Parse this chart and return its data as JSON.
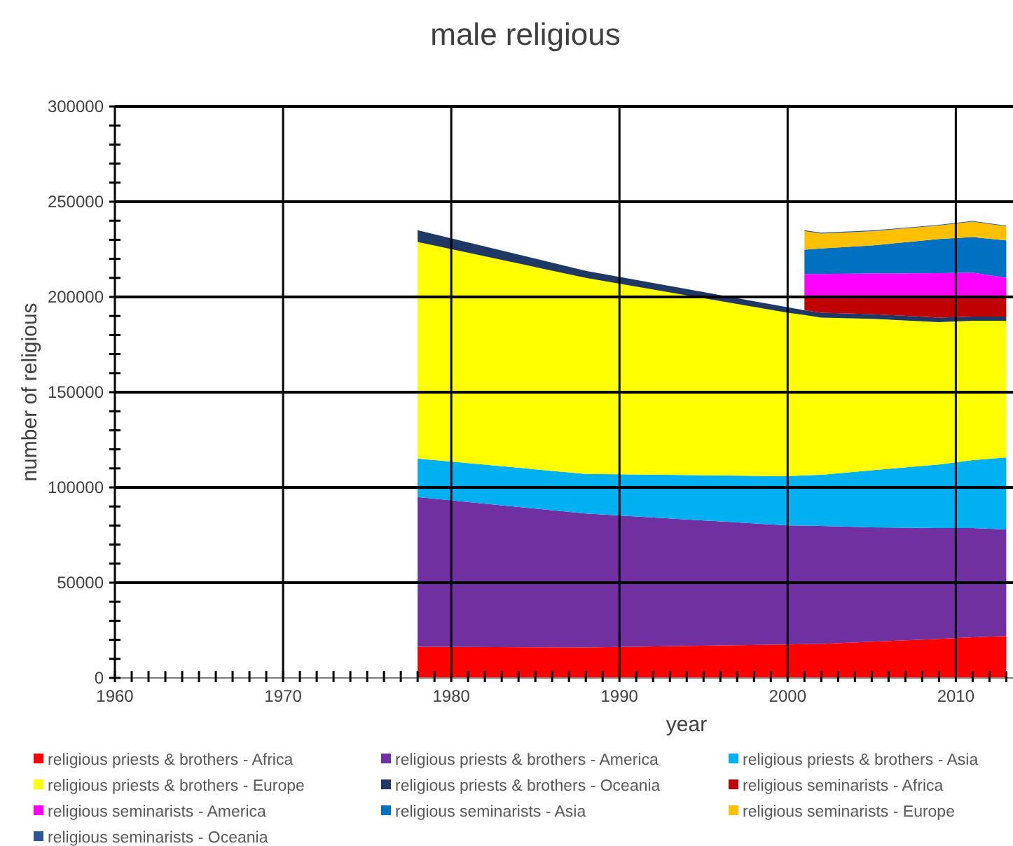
{
  "chart_data": {
    "type": "area",
    "stacked": true,
    "title": "male religious",
    "xlabel": "year",
    "ylabel": "number of religious",
    "x": [
      1978,
      1988,
      2000,
      2001,
      2002,
      2005,
      2009,
      2011,
      2013
    ],
    "xlim": [
      1960,
      2013.4
    ],
    "xticks": [
      1960,
      {
        "value": 1961,
        "label": null
      },
      {
        "value": 1962,
        "label": null
      },
      {
        "value": 1963,
        "label": null
      },
      {
        "value": 1964,
        "label": null
      },
      {
        "value": 1965,
        "label": null
      },
      {
        "value": 1966,
        "label": null
      },
      {
        "value": 1967,
        "label": null
      },
      {
        "value": 1968,
        "label": null
      },
      {
        "value": 1969,
        "label": null
      },
      1970,
      {
        "value": 1971,
        "label": null
      },
      {
        "value": 1972,
        "label": null
      },
      {
        "value": 1973,
        "label": null
      },
      {
        "value": 1974,
        "label": null
      },
      {
        "value": 1975,
        "label": null
      },
      {
        "value": 1976,
        "label": null
      },
      {
        "value": 1977,
        "label": null
      },
      {
        "value": 1978,
        "label": null
      },
      {
        "value": 1979,
        "label": null
      },
      1980,
      {
        "value": 1981,
        "label": null
      },
      {
        "value": 1982,
        "label": null
      },
      {
        "value": 1983,
        "label": null
      },
      {
        "value": 1984,
        "label": null
      },
      {
        "value": 1985,
        "label": null
      },
      {
        "value": 1986,
        "label": null
      },
      {
        "value": 1987,
        "label": null
      },
      {
        "value": 1988,
        "label": null
      },
      {
        "value": 1989,
        "label": null
      },
      1990,
      {
        "value": 1991,
        "label": null
      },
      {
        "value": 1992,
        "label": null
      },
      {
        "value": 1993,
        "label": null
      },
      {
        "value": 1994,
        "label": null
      },
      {
        "value": 1995,
        "label": null
      },
      {
        "value": 1996,
        "label": null
      },
      {
        "value": 1997,
        "label": null
      },
      {
        "value": 1998,
        "label": null
      },
      {
        "value": 1999,
        "label": null
      },
      2000,
      {
        "value": 2001,
        "label": null
      },
      {
        "value": 2002,
        "label": null
      },
      {
        "value": 2003,
        "label": null
      },
      {
        "value": 2004,
        "label": null
      },
      {
        "value": 2005,
        "label": null
      },
      {
        "value": 2006,
        "label": null
      },
      {
        "value": 2007,
        "label": null
      },
      {
        "value": 2008,
        "label": null
      },
      {
        "value": 2009,
        "label": null
      },
      2010,
      {
        "value": 2011,
        "label": null
      },
      {
        "value": 2012,
        "label": null
      },
      {
        "value": 2013,
        "label": null
      }
    ],
    "ylim": [
      0,
      300000
    ],
    "yticks": [
      0,
      {
        "value": 10000,
        "label": null
      },
      {
        "value": 20000,
        "label": null
      },
      {
        "value": 30000,
        "label": null
      },
      {
        "value": 40000,
        "label": null
      },
      50000,
      {
        "value": 60000,
        "label": null
      },
      {
        "value": 70000,
        "label": null
      },
      {
        "value": 80000,
        "label": null
      },
      {
        "value": 90000,
        "label": null
      },
      100000,
      {
        "value": 110000,
        "label": null
      },
      {
        "value": 120000,
        "label": null
      },
      {
        "value": 130000,
        "label": null
      },
      {
        "value": 140000,
        "label": null
      },
      150000,
      {
        "value": 160000,
        "label": null
      },
      {
        "value": 170000,
        "label": null
      },
      {
        "value": 180000,
        "label": null
      },
      {
        "value": 190000,
        "label": null
      },
      200000,
      {
        "value": 210000,
        "label": null
      },
      {
        "value": 220000,
        "label": null
      },
      {
        "value": 230000,
        "label": null
      },
      {
        "value": 240000,
        "label": null
      },
      250000,
      {
        "value": 260000,
        "label": null
      },
      {
        "value": 270000,
        "label": null
      },
      {
        "value": 280000,
        "label": null
      },
      {
        "value": 290000,
        "label": null
      },
      300000
    ],
    "grid": true,
    "legend": "bottom",
    "series": [
      {
        "name": "religious priests & brothers - Africa",
        "color": "#ff0000",
        "values": [
          16400,
          16000,
          17600,
          17700,
          17800,
          19000,
          20500,
          21300,
          22000
        ]
      },
      {
        "name": "religious priests & brothers - America",
        "color": "#7030a0",
        "values": [
          78500,
          70300,
          62500,
          62300,
          62000,
          60000,
          58200,
          57400,
          55900
        ]
      },
      {
        "name": "religious priests & brothers - Asia",
        "color": "#00b0f0",
        "values": [
          20300,
          20800,
          25800,
          26300,
          26800,
          30000,
          33300,
          35600,
          37800
        ]
      },
      {
        "name": "religious priests & brothers - Europe",
        "color": "#ffff00",
        "values": [
          113700,
          102900,
          85800,
          84200,
          82600,
          79500,
          74800,
          73200,
          71800
        ]
      },
      {
        "name": "religious priests & brothers - Oceania",
        "color": "#1f3864",
        "values": [
          6100,
          3700,
          2900,
          2500,
          2500,
          2500,
          2400,
          2200,
          2200
        ]
      },
      {
        "name": "religious seminarists - Africa",
        "color": "#c00000",
        "values": [
          null,
          null,
          null,
          6500,
          7800,
          8500,
          10500,
          10000,
          10100
        ]
      },
      {
        "name": "religious seminarists - America",
        "color": "#ff00ff",
        "values": [
          null,
          null,
          null,
          12500,
          12500,
          12800,
          12800,
          13100,
          10200
        ]
      },
      {
        "name": "religious seminarists - Asia",
        "color": "#0070c0",
        "values": [
          null,
          null,
          null,
          12800,
          13500,
          14700,
          17900,
          18600,
          19700
        ]
      },
      {
        "name": "religious seminarists - Europe",
        "color": "#ffc000",
        "values": [
          null,
          null,
          null,
          9800,
          7800,
          7500,
          7100,
          8100,
          7300
        ]
      },
      {
        "name": "religious seminarists - Oceania",
        "color": "#2f5597",
        "values": [
          null,
          null,
          null,
          400,
          400,
          400,
          400,
          400,
          400
        ]
      }
    ]
  }
}
